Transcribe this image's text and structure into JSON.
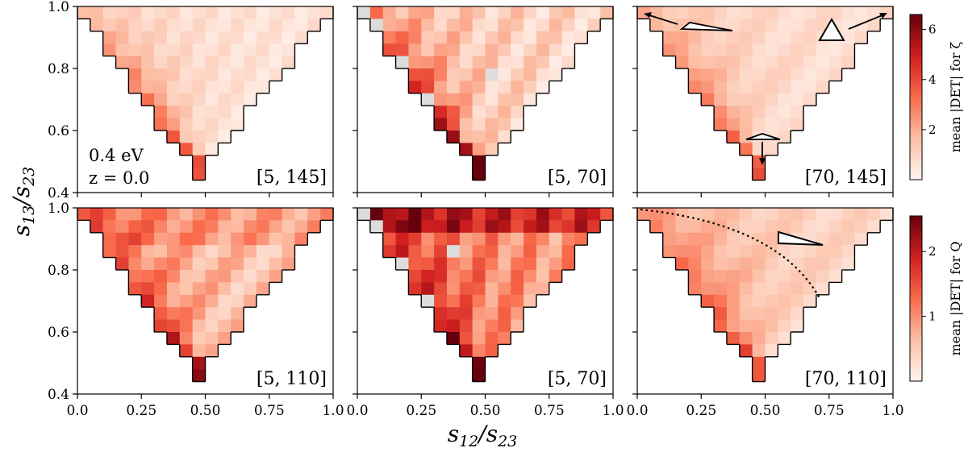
{
  "chart_data": {
    "type": "heatmap",
    "xlabel": "s12/s23",
    "ylabel": "s13/s23",
    "xlim": [
      0.0,
      1.0
    ],
    "ylim": [
      0.4,
      1.0
    ],
    "xticks": [
      "0.0",
      "0.25",
      "0.50",
      "0.75",
      "1.0"
    ],
    "yticks": [
      "0.4",
      "0.6",
      "0.8",
      "1.0"
    ],
    "annotation": {
      "energy": "0.4 eV",
      "redshift": "z = 0.0"
    },
    "rows": [
      {
        "colorbar": {
          "label": "mean |DET| for ζ",
          "min": 0,
          "max": 6.6,
          "ticks": [
            "2",
            "4",
            "6"
          ],
          "tick_values": [
            2,
            4,
            6
          ]
        },
        "panels": [
          {
            "label": "[5, 145]",
            "scale": 2.6,
            "grey_cells": []
          },
          {
            "label": "[5, 70]",
            "scale": 6.2,
            "grey_cells": [
              [
                0,
                0
              ],
              [
                1,
                1
              ],
              [
                7,
                5
              ],
              [
                12,
                5
              ],
              [
                4,
                3
              ],
              [
                5,
                10
              ],
              [
                9,
                13
              ]
            ]
          },
          {
            "label": "[70, 145]",
            "scale": 1.8,
            "grey_cells": []
          }
        ]
      },
      {
        "colorbar": {
          "label": "mean |DET| for Q",
          "min": 0,
          "max": 2.55,
          "ticks": [
            "1",
            "2"
          ],
          "tick_values": [
            1,
            2
          ]
        },
        "panels": [
          {
            "label": "[5, 110]",
            "scale": 2.3,
            "grey_cells": []
          },
          {
            "label": "[5, 70]",
            "scale": 2.5,
            "grey_cells": [
              [
                0,
                0
              ],
              [
                1,
                1
              ],
              [
                7,
                5
              ],
              [
                4,
                3
              ],
              [
                9,
                13
              ],
              [
                3,
                7
              ]
            ]
          },
          {
            "label": "[70, 110]",
            "scale": 1.7,
            "grey_cells": []
          }
        ]
      }
    ]
  }
}
